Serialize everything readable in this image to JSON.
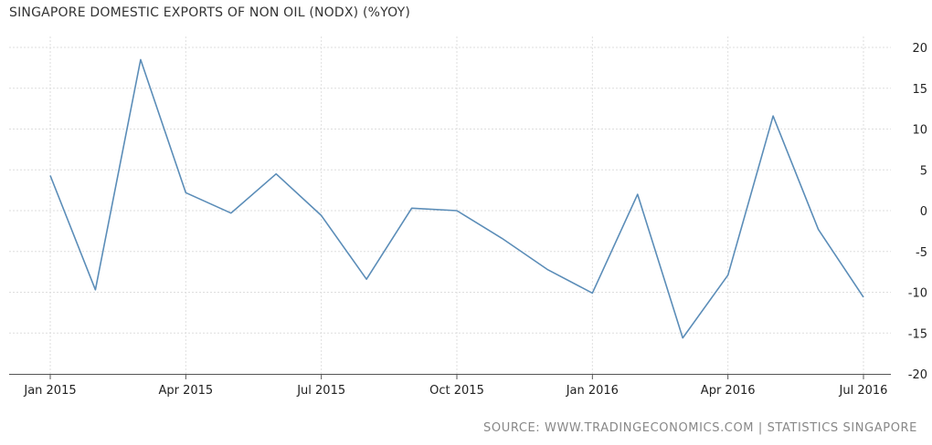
{
  "chart_data": {
    "type": "line",
    "title": "SINGAPORE DOMESTIC EXPORTS OF NON OIL (NODX) (%YOY)",
    "xlabel": "",
    "ylabel": "",
    "ylim": [
      -20,
      20
    ],
    "yticks": [
      20,
      15,
      10,
      5,
      0,
      -5,
      -10,
      -15,
      -20
    ],
    "xticks": [
      "Jan 2015",
      "Apr 2015",
      "Jul 2015",
      "Oct 2015",
      "Jan 2016",
      "Apr 2016",
      "Jul 2016"
    ],
    "xtick_index": [
      0,
      3,
      6,
      9,
      12,
      15,
      18
    ],
    "x": [
      "2015-01",
      "2015-02",
      "2015-03",
      "2015-04",
      "2015-05",
      "2015-06",
      "2015-07",
      "2015-08",
      "2015-09",
      "2015-10",
      "2015-11",
      "2015-12",
      "2016-01",
      "2016-02",
      "2016-03",
      "2016-04",
      "2016-05",
      "2016-06",
      "2016-07"
    ],
    "series": [
      {
        "values": [
          4.3,
          -9.7,
          18.5,
          2.2,
          -0.3,
          4.5,
          -0.6,
          -8.4,
          0.3,
          0.0,
          -3.4,
          -7.2,
          -10.1,
          2.0,
          -15.6,
          -7.9,
          11.6,
          -2.3,
          -10.6
        ],
        "color": "#5b8db8"
      }
    ],
    "grid": true,
    "legend": "none"
  },
  "source": "SOURCE:  WWW.TRADINGECONOMICS.COM  |  STATISTICS SINGAPORE"
}
